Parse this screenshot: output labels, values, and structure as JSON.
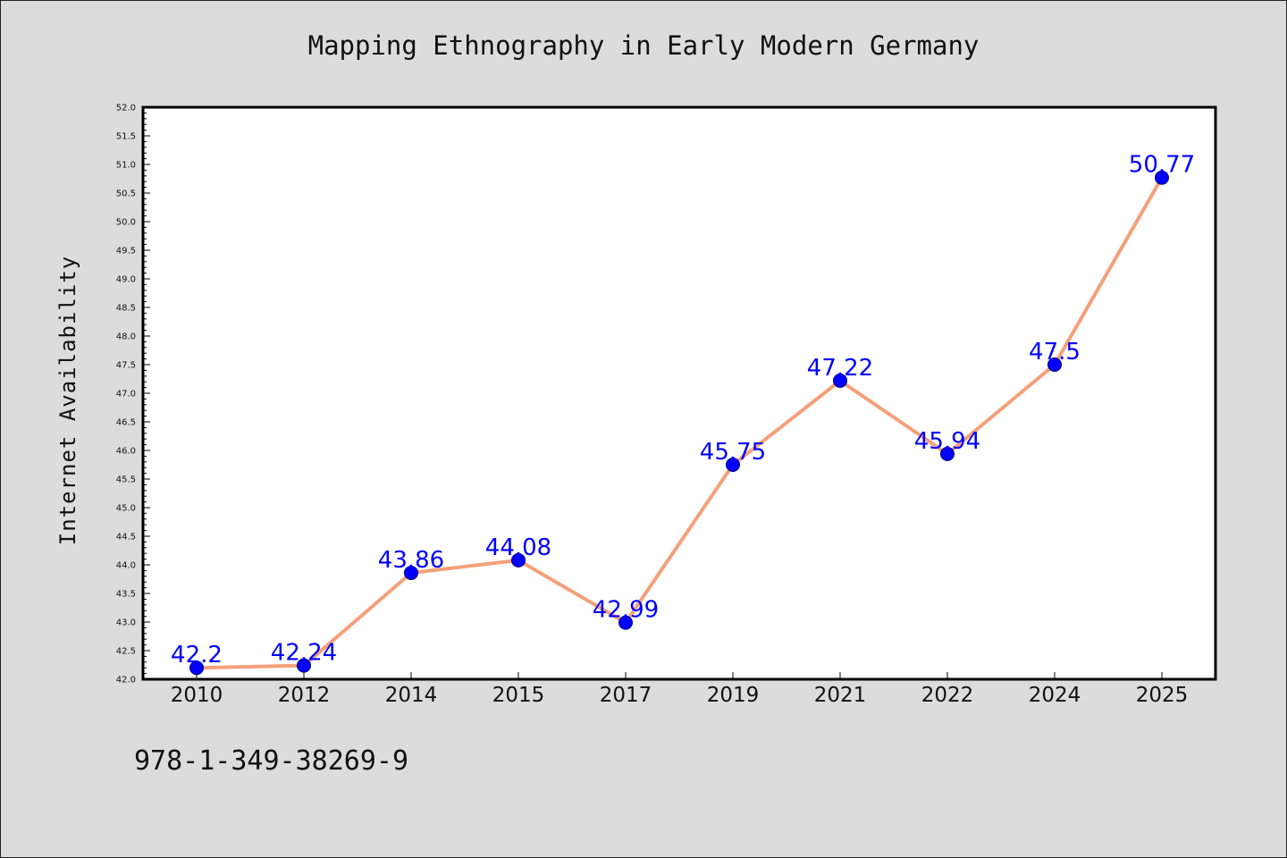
{
  "chart_data": {
    "type": "line",
    "title": "Mapping Ethnography in Early Modern Germany",
    "ylabel": "Internet Availability",
    "xlabel": "",
    "categories": [
      "2010",
      "2012",
      "2014",
      "2015",
      "2017",
      "2019",
      "2021",
      "2022",
      "2024",
      "2025"
    ],
    "series": [
      {
        "values": [
          42.2,
          42.24,
          43.86,
          44.08,
          42.99,
          45.75,
          47.22,
          45.94,
          47.5,
          50.77
        ],
        "labels": [
          "42.2",
          "42.24",
          "43.86",
          "44.08",
          "42.99",
          "45.75",
          "47.22",
          "45.94",
          "47.5",
          "50.77"
        ]
      }
    ],
    "ylim": [
      42.0,
      52.0
    ],
    "ytick_step": 0.5,
    "grid": false,
    "line_color": "#f4a07a",
    "marker_color": "#0000ff",
    "label_color": "#0000ff"
  },
  "footer": {
    "code": "978-1-349-38269-9"
  }
}
